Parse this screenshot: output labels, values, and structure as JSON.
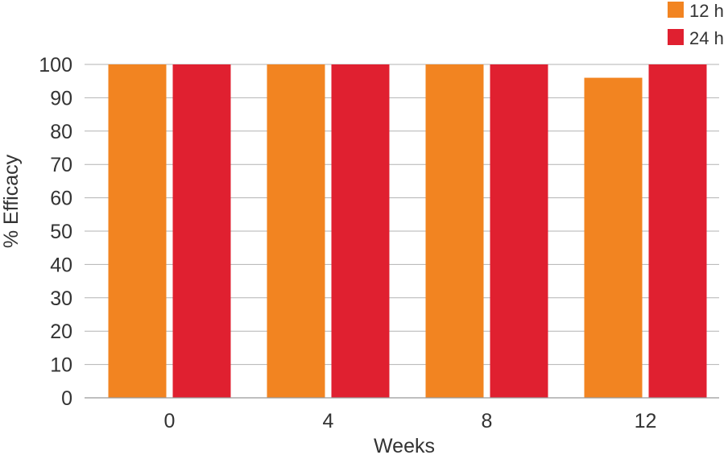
{
  "chart_data": {
    "type": "bar",
    "title": "",
    "xlabel": "Weeks",
    "ylabel": "% Efficacy",
    "categories": [
      "0",
      "4",
      "8",
      "12"
    ],
    "series": [
      {
        "name": "12 h",
        "color": "#f28421",
        "values": [
          100,
          100,
          100,
          96
        ]
      },
      {
        "name": "24 h",
        "color": "#e02030",
        "values": [
          100,
          100,
          100,
          100
        ]
      }
    ],
    "ylim": [
      0,
      100
    ],
    "yticks": [
      "0",
      "10",
      "20",
      "30",
      "40",
      "50",
      "60",
      "70",
      "80",
      "90",
      "100"
    ],
    "grid": true,
    "legend": "top-right"
  }
}
